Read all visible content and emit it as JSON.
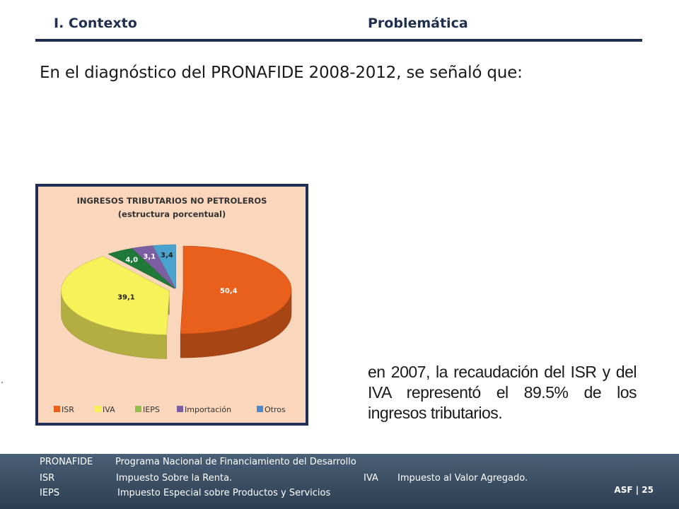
{
  "header": {
    "section": "I. Contexto",
    "subsection": "Problemática"
  },
  "headline": "En el diagnóstico del PRONAFIDE 2008-2012, se señaló que:",
  "statement": "en 2007, la recaudación del ISR y del IVA representó el 89.5% de los ingresos tributarios.",
  "chart_data": {
    "type": "pie",
    "title": "INGRESOS TRIBUTARIOS NO PETROLEROS",
    "subtitle": "(estructura porcentual)",
    "categories": [
      "ISR",
      "IVA",
      "IEPS",
      "Importación",
      "Otros"
    ],
    "values": [
      50.4,
      39.1,
      4.0,
      3.1,
      3.4
    ],
    "labels": [
      "50,4",
      "39,1",
      "4,0",
      "3,1",
      "3,4"
    ],
    "colors": [
      "#e8601c",
      "#f7f25a",
      "#1f7a3a",
      "#7c5fa3",
      "#4aa3cf"
    ],
    "legend_colors": [
      "#e8601c",
      "#f7f25a",
      "#92c04b",
      "#7c5fa3",
      "#4f87c9"
    ],
    "legend": "bottom",
    "style": "3d-exploded"
  },
  "glossary": [
    {
      "abbr": "PRONAFIDE",
      "def": "Programa Nacional de Financiamiento del Desarrollo"
    },
    {
      "abbr": "ISR",
      "def": "Impuesto Sobre la Renta.",
      "abbr2": "IVA",
      "def2": "Impuesto al Valor Agregado."
    },
    {
      "abbr": "IEPS",
      "def": "Impuesto Especial sobre Productos y Servicios"
    }
  ],
  "footer": {
    "page": "ASF | 25"
  }
}
